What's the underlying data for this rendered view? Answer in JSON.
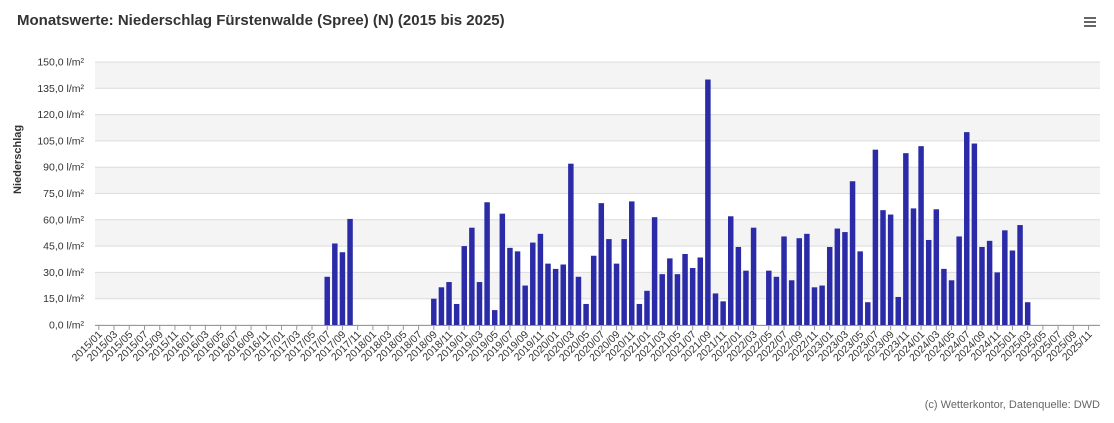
{
  "page": {
    "title": "Monatswerte: Niederschlag Fürstenwalde (Spree) (N) (2015 bis 2025)",
    "credits": "(c) Wetterkontor, Datenquelle: DWD",
    "menu_icon": "hamburger-menu-icon"
  },
  "chart_data": {
    "type": "bar",
    "title": "Monatswerte: Niederschlag Fürstenwalde (Spree) (N) (2015 bis 2025)",
    "xlabel": "",
    "ylabel": "Niederschlag",
    "ylim": [
      0,
      150
    ],
    "yticks": [
      "0,0 l/m²",
      "15,0 l/m²",
      "30,0 l/m²",
      "45,0 l/m²",
      "60,0 l/m²",
      "75,0 l/m²",
      "90,0 l/m²",
      "105,0 l/m²",
      "120,0 l/m²",
      "135,0 l/m²",
      "150,0 l/m²"
    ],
    "grid": true,
    "bar_color": "#2b2ba8",
    "plot_band_color": "#f4f4f4",
    "start": "2015/01",
    "categories": [
      "2015/01",
      "2015/02",
      "2015/03",
      "2015/04",
      "2015/05",
      "2015/06",
      "2015/07",
      "2015/08",
      "2015/09",
      "2015/10",
      "2015/11",
      "2015/12",
      "2016/01",
      "2016/02",
      "2016/03",
      "2016/04",
      "2016/05",
      "2016/06",
      "2016/07",
      "2016/08",
      "2016/09",
      "2016/10",
      "2016/11",
      "2016/12",
      "2017/01",
      "2017/02",
      "2017/03",
      "2017/04",
      "2017/05",
      "2017/06",
      "2017/07",
      "2017/08",
      "2017/09",
      "2017/10",
      "2017/11",
      "2017/12",
      "2018/01",
      "2018/02",
      "2018/03",
      "2018/04",
      "2018/05",
      "2018/06",
      "2018/07",
      "2018/08",
      "2018/09",
      "2018/10",
      "2018/11",
      "2018/12",
      "2019/01",
      "2019/02",
      "2019/03",
      "2019/04",
      "2019/05",
      "2019/06",
      "2019/07",
      "2019/08",
      "2019/09",
      "2019/10",
      "2019/11",
      "2019/12",
      "2020/01",
      "2020/02",
      "2020/03",
      "2020/04",
      "2020/05",
      "2020/06",
      "2020/07",
      "2020/08",
      "2020/09",
      "2020/10",
      "2020/11",
      "2020/12",
      "2021/01",
      "2021/02",
      "2021/03",
      "2021/04",
      "2021/05",
      "2021/06",
      "2021/07",
      "2021/08",
      "2021/09",
      "2021/10",
      "2021/11",
      "2021/12",
      "2022/01",
      "2022/02",
      "2022/03",
      "2022/04",
      "2022/05",
      "2022/06",
      "2022/07",
      "2022/08",
      "2022/09",
      "2022/10",
      "2022/11",
      "2022/12",
      "2023/01",
      "2023/02",
      "2023/03",
      "2023/04",
      "2023/05",
      "2023/06",
      "2023/07",
      "2023/08",
      "2023/09",
      "2023/10",
      "2023/11",
      "2023/12",
      "2024/01",
      "2024/02",
      "2024/03",
      "2024/04",
      "2024/05",
      "2024/06",
      "2024/07",
      "2024/08",
      "2024/09",
      "2024/10",
      "2024/11",
      "2024/12",
      "2025/01",
      "2025/02",
      "2025/03",
      "2025/04",
      "2025/05",
      "2025/06",
      "2025/07",
      "2025/08",
      "2025/09",
      "2025/10",
      "2025/11",
      "2025/12"
    ],
    "values": [
      null,
      null,
      null,
      null,
      null,
      null,
      null,
      null,
      null,
      null,
      null,
      null,
      null,
      null,
      null,
      null,
      null,
      null,
      null,
      null,
      null,
      null,
      null,
      null,
      null,
      null,
      null,
      null,
      null,
      null,
      27.5,
      46.5,
      41.5,
      60.5,
      null,
      null,
      null,
      null,
      null,
      null,
      null,
      null,
      null,
      null,
      15.0,
      21.5,
      24.5,
      12.0,
      45.0,
      55.5,
      24.5,
      70.0,
      8.5,
      63.5,
      44.0,
      42.0,
      22.5,
      47.0,
      52.0,
      35.0,
      32.0,
      34.5,
      92.0,
      27.5,
      12.0,
      39.5,
      69.5,
      49.0,
      35.0,
      49.0,
      70.5,
      12.0,
      19.5,
      61.5,
      29.0,
      38.0,
      29.0,
      40.5,
      32.5,
      38.5,
      140.0,
      18.0,
      13.5,
      62.0,
      44.5,
      31.0,
      55.5,
      null,
      31.0,
      27.5,
      50.5,
      25.5,
      49.5,
      52.0,
      21.5,
      22.5,
      44.5,
      55.0,
      53.0,
      82.0,
      42.0,
      13.0,
      100.0,
      65.5,
      63.0,
      16.0,
      98.0,
      66.5,
      102.0,
      48.5,
      66.0,
      32.0,
      25.5,
      50.5,
      110.0,
      103.5,
      44.5,
      48.0,
      30.0,
      54.0,
      42.5,
      57.0,
      13.0,
      null,
      null,
      null,
      null,
      null,
      null,
      null,
      null,
      null
    ]
  }
}
